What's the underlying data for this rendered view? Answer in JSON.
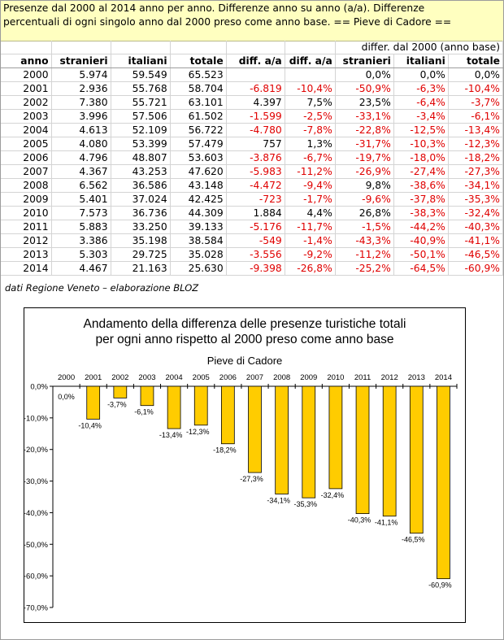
{
  "header": {
    "line1": "Presenze dal 2000 al 2014 anno per anno. Differenze anno su anno (a/a). Differenze",
    "line2": "percentuali di ogni singolo anno dal 2000 preso come anno base. == Pieve di Cadore =="
  },
  "table": {
    "super_header": "differ. dal 2000 (anno base)",
    "columns": [
      "anno",
      "stranieri",
      "italiani",
      "totale",
      "diff. a/a",
      "diff. a/a",
      "stranieri",
      "italiani",
      "totale"
    ],
    "rows": [
      [
        "2000",
        "5.974",
        "59.549",
        "65.523",
        "",
        "",
        "0,0%",
        "0,0%",
        "0,0%"
      ],
      [
        "2001",
        "2.936",
        "55.768",
        "58.704",
        "-6.819",
        "-10,4%",
        "-50,9%",
        "-6,3%",
        "-10,4%"
      ],
      [
        "2002",
        "7.380",
        "55.721",
        "63.101",
        "4.397",
        "7,5%",
        "23,5%",
        "-6,4%",
        "-3,7%"
      ],
      [
        "2003",
        "3.996",
        "57.506",
        "61.502",
        "-1.599",
        "-2,5%",
        "-33,1%",
        "-3,4%",
        "-6,1%"
      ],
      [
        "2004",
        "4.613",
        "52.109",
        "56.722",
        "-4.780",
        "-7,8%",
        "-22,8%",
        "-12,5%",
        "-13,4%"
      ],
      [
        "2005",
        "4.080",
        "53.399",
        "57.479",
        "757",
        "1,3%",
        "-31,7%",
        "-10,3%",
        "-12,3%"
      ],
      [
        "2006",
        "4.796",
        "48.807",
        "53.603",
        "-3.876",
        "-6,7%",
        "-19,7%",
        "-18,0%",
        "-18,2%"
      ],
      [
        "2007",
        "4.367",
        "43.253",
        "47.620",
        "-5.983",
        "-11,2%",
        "-26,9%",
        "-27,4%",
        "-27,3%"
      ],
      [
        "2008",
        "6.562",
        "36.586",
        "43.148",
        "-4.472",
        "-9,4%",
        "9,8%",
        "-38,6%",
        "-34,1%"
      ],
      [
        "2009",
        "5.401",
        "37.024",
        "42.425",
        "-723",
        "-1,7%",
        "-9,6%",
        "-37,8%",
        "-35,3%"
      ],
      [
        "2010",
        "7.573",
        "36.736",
        "44.309",
        "1.884",
        "4,4%",
        "26,8%",
        "-38,3%",
        "-32,4%"
      ],
      [
        "2011",
        "5.883",
        "33.250",
        "39.133",
        "-5.176",
        "-11,7%",
        "-1,5%",
        "-44,2%",
        "-40,3%"
      ],
      [
        "2012",
        "3.386",
        "35.198",
        "38.584",
        "-549",
        "-1,4%",
        "-43,3%",
        "-40,9%",
        "-41,1%"
      ],
      [
        "2013",
        "5.303",
        "29.725",
        "35.028",
        "-3.556",
        "-9,2%",
        "-11,2%",
        "-50,1%",
        "-46,5%"
      ],
      [
        "2014",
        "4.467",
        "21.163",
        "25.630",
        "-9.398",
        "-26,8%",
        "-25,2%",
        "-64,5%",
        "-60,9%"
      ]
    ],
    "negative_color": "#e00000"
  },
  "source": "dati Regione Veneto – elaborazione BLOZ",
  "chart_data": {
    "type": "bar",
    "title": "Andamento della differenza delle presenze turistiche totali",
    "subtitle": "per ogni anno rispetto al 2000 preso come anno base",
    "place": "Pieve di Cadore",
    "categories": [
      "2000",
      "2001",
      "2002",
      "2003",
      "2004",
      "2005",
      "2006",
      "2007",
      "2008",
      "2009",
      "2010",
      "2011",
      "2012",
      "2013",
      "2014"
    ],
    "values": [
      0.0,
      -10.4,
      -3.7,
      -6.1,
      -13.4,
      -12.3,
      -18.2,
      -27.3,
      -34.1,
      -35.3,
      -32.4,
      -40.3,
      -41.1,
      -46.5,
      -60.9
    ],
    "data_labels": [
      "0,0%",
      "-10,4%",
      "-3,7%",
      "-6,1%",
      "-13,4%",
      "-12,3%",
      "-18,2%",
      "-27,3%",
      "-34,1%",
      "-35,3%",
      "-32,4%",
      "-40,3%",
      "-41,1%",
      "-46,5%",
      "-60,9%"
    ],
    "yticks": [
      0,
      -10,
      -20,
      -30,
      -40,
      -50,
      -60,
      -70
    ],
    "ytick_labels": [
      "0,0%",
      "-10,0%",
      "-20,0%",
      "-30,0%",
      "-40,0%",
      "-50,0%",
      "-60,0%",
      "-70,0%"
    ],
    "ylim": [
      -70,
      0
    ],
    "bar_color": "#ffcc00",
    "grid": false,
    "xlabel": "",
    "ylabel": ""
  }
}
